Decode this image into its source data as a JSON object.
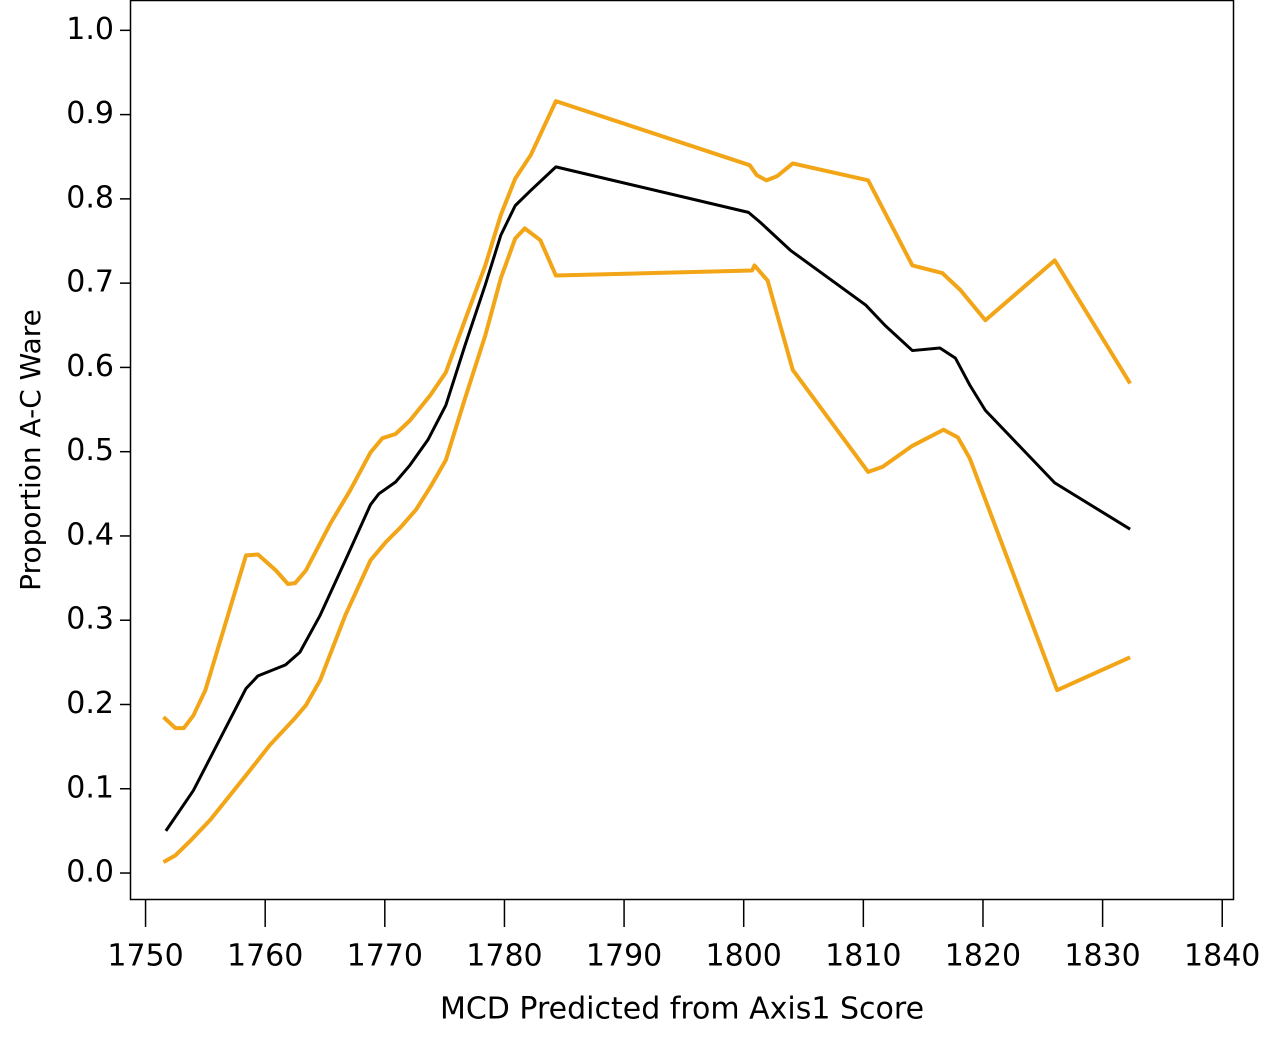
{
  "chart_data": {
    "type": "line",
    "xlabel": "MCD Predicted from Axis1 Score",
    "ylabel": "Proportion A-C Ware",
    "xlim": [
      1748.7,
      1840.9
    ],
    "ylim": [
      -0.032,
      1.036
    ],
    "xticks": [
      1750,
      1760,
      1770,
      1780,
      1790,
      1800,
      1810,
      1820,
      1830,
      1840
    ],
    "yticks": [
      {
        "value": 0,
        "label": "0.0"
      },
      0.1,
      0.2,
      0.3,
      0.4,
      0.5,
      0.6,
      0.7,
      0.8,
      0.9,
      {
        "value": 1,
        "label": "1.0"
      }
    ],
    "grid": false,
    "series": [
      {
        "color": "#000000",
        "width": 3,
        "x": [
          1751.7,
          1752.9,
          1754.0,
          1758.4,
          1759.4,
          1761.7,
          1762.9,
          1764.6,
          1766.7,
          1768.8,
          1769.5,
          1770.9,
          1772.1,
          1773.6,
          1775.1,
          1776.7,
          1778.4,
          1779.7,
          1780.9,
          1782.2,
          1784.3,
          1800.4,
          1801.4,
          1803.9,
          1810.2,
          1811.8,
          1814.1,
          1816.4,
          1817.7,
          1818.9,
          1820.2,
          1826.0,
          1832.3
        ],
        "values": [
          0.05,
          0.075,
          0.098,
          0.219,
          0.234,
          0.247,
          0.262,
          0.306,
          0.371,
          0.437,
          0.45,
          0.464,
          0.484,
          0.514,
          0.555,
          0.626,
          0.698,
          0.757,
          0.792,
          0.81,
          0.838,
          0.784,
          0.772,
          0.739,
          0.674,
          0.65,
          0.62,
          0.623,
          0.611,
          0.579,
          0.549,
          0.463,
          0.408
        ]
      },
      {
        "color": "#f2a516",
        "width": 4,
        "x": [
          1751.5,
          1752.5,
          1753.2,
          1754.0,
          1755.0,
          1758.4,
          1759.4,
          1760.9,
          1761.9,
          1762.5,
          1763.4,
          1765.5,
          1767.1,
          1768.8,
          1769.8,
          1770.9,
          1772.1,
          1773.8,
          1775.1,
          1776.7,
          1778.4,
          1779.7,
          1780.9,
          1782.2,
          1784.3,
          1800.5,
          1801.1,
          1801.9,
          1802.8,
          1804.1,
          1810.4,
          1814.1,
          1816.6,
          1818.1,
          1820.2,
          1826.0,
          1832.3
        ],
        "values": [
          0.185,
          0.172,
          0.172,
          0.187,
          0.217,
          0.377,
          0.378,
          0.359,
          0.343,
          0.344,
          0.359,
          0.416,
          0.454,
          0.499,
          0.516,
          0.521,
          0.537,
          0.567,
          0.594,
          0.656,
          0.721,
          0.781,
          0.824,
          0.852,
          0.916,
          0.84,
          0.828,
          0.822,
          0.827,
          0.842,
          0.822,
          0.721,
          0.712,
          0.692,
          0.656,
          0.727,
          0.581
        ]
      },
      {
        "color": "#f2a516",
        "width": 4,
        "x": [
          1751.5,
          1752.5,
          1753.8,
          1755.4,
          1758.4,
          1760.4,
          1762.5,
          1763.4,
          1764.6,
          1766.7,
          1768.8,
          1770.1,
          1771.3,
          1772.6,
          1773.8,
          1775.1,
          1776.7,
          1778.4,
          1779.7,
          1780.9,
          1781.7,
          1783.0,
          1784.3,
          1800.7,
          1800.9,
          1802.0,
          1804.1,
          1810.4,
          1811.6,
          1814.1,
          1816.7,
          1817.9,
          1818.9,
          1826.2,
          1832.3
        ],
        "values": [
          0.013,
          0.021,
          0.039,
          0.063,
          0.116,
          0.152,
          0.184,
          0.199,
          0.229,
          0.306,
          0.371,
          0.393,
          0.41,
          0.431,
          0.458,
          0.49,
          0.563,
          0.638,
          0.706,
          0.753,
          0.765,
          0.751,
          0.709,
          0.715,
          0.721,
          0.703,
          0.597,
          0.476,
          0.482,
          0.507,
          0.526,
          0.517,
          0.492,
          0.217,
          0.256
        ]
      }
    ]
  }
}
